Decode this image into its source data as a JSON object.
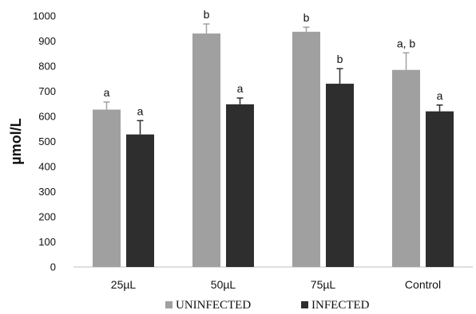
{
  "chart_data": {
    "type": "bar",
    "title": "",
    "xlabel": "",
    "ylabel": "µmol/L",
    "ylim": [
      0,
      1000
    ],
    "yticks": [
      0,
      100,
      200,
      300,
      400,
      500,
      600,
      700,
      800,
      900,
      1000
    ],
    "grid": false,
    "legend_position": "bottom",
    "categories": [
      "25µL",
      "50µL",
      "75µL",
      "Control"
    ],
    "series": [
      {
        "name": "UNINFECTED",
        "color": "#a0a0a0",
        "values": [
          627,
          930,
          937,
          785
        ],
        "errors": [
          30,
          38,
          18,
          68
        ],
        "labels": [
          "a",
          "b",
          "b",
          "a, b"
        ]
      },
      {
        "name": "INFECTED",
        "color": "#2e2e2e",
        "values": [
          528,
          648,
          730,
          620
        ],
        "errors": [
          55,
          25,
          60,
          25
        ],
        "labels": [
          "a",
          "a",
          "b",
          "a"
        ]
      }
    ]
  }
}
